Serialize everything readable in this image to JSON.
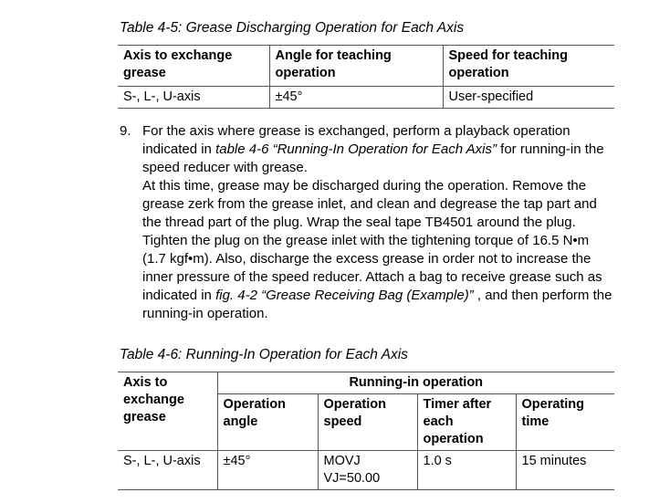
{
  "table45": {
    "caption": "Table 4-5: Grease Discharging Operation for Each Axis",
    "headers": [
      "Axis to exchange grease",
      "Angle for teaching operation",
      "Speed for teaching operation"
    ],
    "rows": [
      [
        "S-, L-, U-axis",
        "±45°",
        "User-specified"
      ]
    ]
  },
  "step9": {
    "number": "9.",
    "text_a": "For the axis where grease is exchanged, perform a playback operation indicated in ",
    "ref1": "table 4-6",
    "ref1_title": "“Running-In Operation for Each Axis”",
    "text_b": " for running-in the speed reducer with grease.",
    "text_c": "At this time, grease may be discharged during the operation. Remove the grease zerk from the grease inlet, and clean and degrease the tap part and the thread part of the plug.  Wrap the seal tape TB4501 around the plug.  Tighten the plug on the grease inlet with the tightening torque of 16.5 N•m (1.7 kgf•m).  Also, discharge the excess grease in order not to increase the inner pressure of the speed reducer.  Attach a bag to receive grease such as indicated in ",
    "ref2": "fig. 4-2",
    "ref2_title": "“Grease Receiving Bag (Example)”",
    "text_d": " , and then perform the running-in operation."
  },
  "table46": {
    "caption": "Table 4-6: Running-In Operation for Each Axis",
    "header_axis": "Axis to exchange grease",
    "header_group": "Running-in operation",
    "subheaders": [
      "Operation angle",
      "Operation speed",
      "Timer after each operation",
      "Operating time"
    ],
    "rows": [
      [
        "S-, L-, U-axis",
        "±45°",
        "MOVJ VJ=50.00",
        "1.0 s",
        "15 minutes"
      ]
    ]
  }
}
